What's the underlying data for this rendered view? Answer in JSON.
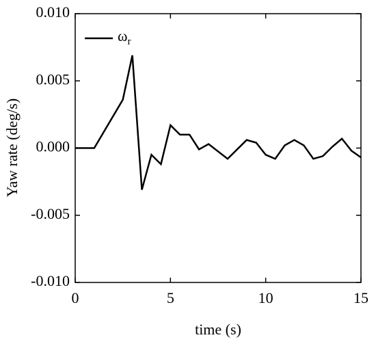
{
  "chart_data": {
    "type": "line",
    "x_label": "time (s)",
    "y_label": "Yaw rate (deg/s)",
    "x": [
      0,
      1,
      2.5,
      3,
      3.5,
      4,
      4.5,
      5,
      5.5,
      6,
      6.5,
      7,
      8,
      9,
      9.5,
      10,
      10.5,
      11,
      11.5,
      12,
      12.5,
      13,
      13.5,
      14,
      14.5,
      15
    ],
    "series": [
      {
        "name": "ω",
        "name_subscript": "r",
        "color": "#000000",
        "values": [
          0,
          0,
          0.0036,
          0.0069,
          -0.0031,
          -0.0005,
          -0.0012,
          0.0017,
          0.001,
          0.001,
          -0.0001,
          0.0003,
          -0.0008,
          0.0006,
          0.0004,
          -0.0005,
          -0.0008,
          0.0002,
          0.0006,
          0.0002,
          -0.0008,
          -0.0006,
          0.0001,
          0.0007,
          -0.0002,
          -0.0007
        ]
      }
    ],
    "xlim": [
      0,
      15
    ],
    "xticks": [
      0,
      5,
      10,
      15
    ],
    "ylim": [
      -0.01,
      0.01
    ],
    "yticks": [
      {
        "value": -0.01,
        "label": "-0.010"
      },
      {
        "value": -0.005,
        "label": "-0.005"
      },
      {
        "value": 0,
        "label": "0.000"
      },
      {
        "value": 0.005,
        "label": "0.005"
      },
      {
        "value": 0.01,
        "label": "0.010"
      }
    ],
    "legend": "upper left",
    "grid": false
  }
}
